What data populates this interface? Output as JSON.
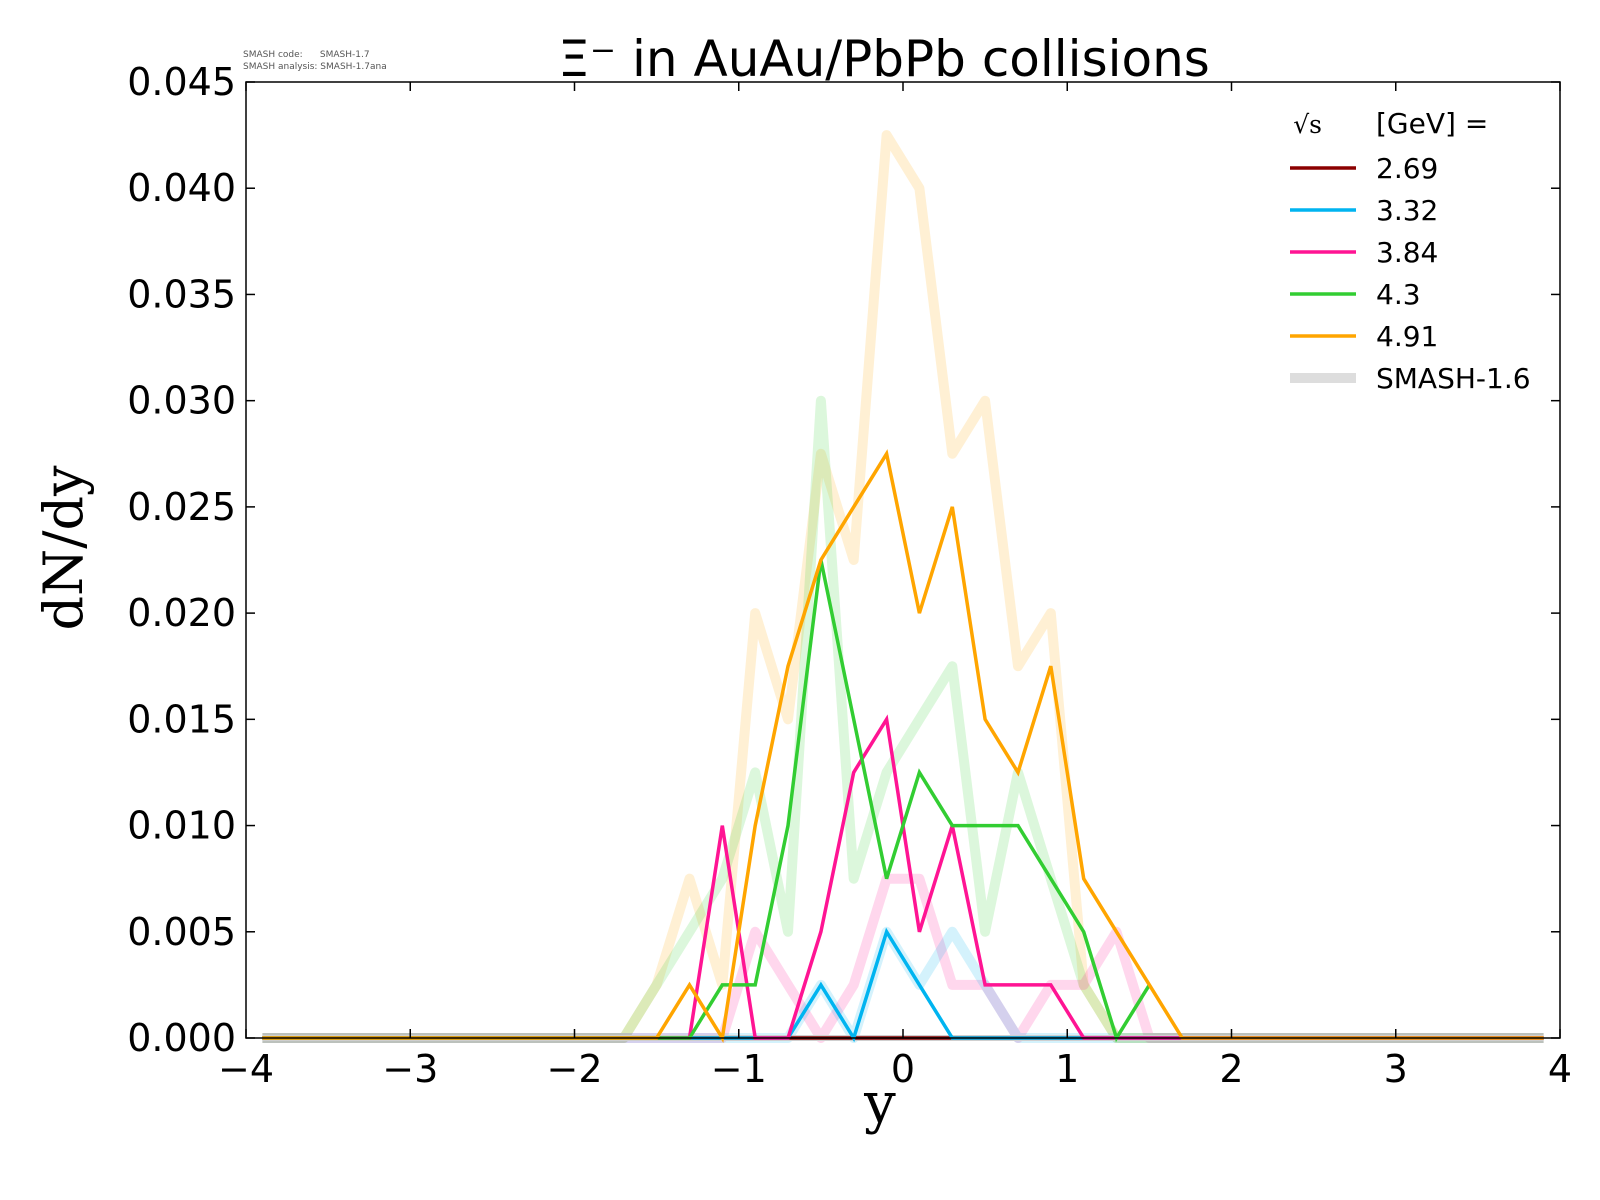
{
  "meta_text": [
    "SMASH code:      SMASH-1.7",
    "SMASH analysis: SMASH-1.7ana"
  ],
  "chart_data": {
    "type": "line",
    "title": "Ξ⁻ in AuAu/PbPb collisions",
    "xlabel": "y",
    "ylabel": "dN/dy",
    "xlim": [
      -4,
      4
    ],
    "ylim": [
      0,
      0.045
    ],
    "xticks": [
      "−4",
      "−3",
      "−2",
      "−1",
      "0",
      "1",
      "2",
      "3",
      "4"
    ],
    "yticks": [
      "0.000",
      "0.005",
      "0.010",
      "0.015",
      "0.020",
      "0.025",
      "0.030",
      "0.035",
      "0.040",
      "0.045"
    ],
    "grid": false,
    "legend": {
      "placement": "top-right",
      "title_sqrt": "√s",
      "title_rest": "[GeV] ="
    },
    "series": [
      {
        "name": "2.69",
        "color": "#8b0000",
        "x": [
          -3.9,
          3.9
        ],
        "values": [
          0,
          0
        ]
      },
      {
        "name": "3.32",
        "color": "#00b4f0",
        "x": [
          -3.9,
          -0.9,
          -0.7,
          -0.5,
          -0.3,
          -0.1,
          0.1,
          0.3,
          3.9
        ],
        "values": [
          0,
          0,
          0,
          0.0025,
          0,
          0.005,
          0.0025,
          0,
          0
        ]
      },
      {
        "name": "3.84",
        "color": "#ff1493",
        "x": [
          -3.9,
          -1.3,
          -1.1,
          -0.9,
          -0.7,
          -0.5,
          -0.3,
          -0.1,
          0.1,
          0.3,
          0.5,
          0.7,
          0.9,
          1.1,
          3.9
        ],
        "values": [
          0,
          0,
          0.01,
          0,
          0,
          0.005,
          0.0125,
          0.015,
          0.005,
          0.01,
          0.0025,
          0.0025,
          0.0025,
          0,
          0
        ]
      },
      {
        "name": "4.3",
        "color": "#32cd32",
        "x": [
          -3.9,
          -1.3,
          -1.1,
          -0.9,
          -0.7,
          -0.5,
          -0.3,
          -0.1,
          0.1,
          0.3,
          0.5,
          0.7,
          0.9,
          1.1,
          1.3,
          1.5
        ],
        "values": [
          0,
          0,
          0.0025,
          0.0025,
          0.01,
          0.0225,
          0.015,
          0.0075,
          0.0125,
          0.01,
          0.01,
          0.01,
          0.0075,
          0.005,
          0,
          0.0025
        ]
      },
      {
        "name": "4.91",
        "color": "#ffa500",
        "x": [
          -3.9,
          -1.5,
          -1.3,
          -1.1,
          -0.9,
          -0.7,
          -0.5,
          -0.3,
          -0.1,
          0.1,
          0.3,
          0.5,
          0.7,
          0.9,
          1.1,
          1.3,
          1.5,
          1.7,
          3.9
        ],
        "values": [
          0,
          0,
          0.0025,
          0,
          0.01,
          0.0175,
          0.0225,
          0.025,
          0.0275,
          0.02,
          0.025,
          0.015,
          0.0125,
          0.0175,
          0.0075,
          0.005,
          0.0025,
          0,
          0
        ]
      }
    ],
    "reference": {
      "name": "SMASH-1.6",
      "legend_color": "#dddddd",
      "series": [
        {
          "color": "#ffa500",
          "x": [
            -3.9,
            -1.7,
            -1.5,
            -1.3,
            -1.1,
            -0.9,
            -0.7,
            -0.5,
            -0.3,
            -0.1,
            0.1,
            0.3,
            0.5,
            0.7,
            0.9,
            1.1,
            1.3,
            3.9
          ],
          "values": [
            0,
            0,
            0.0025,
            0.0075,
            0.0025,
            0.02,
            0.015,
            0.0275,
            0.0225,
            0.0425,
            0.04,
            0.0275,
            0.03,
            0.0175,
            0.02,
            0.0025,
            0,
            0
          ]
        },
        {
          "color": "#32cd32",
          "x": [
            -3.9,
            -1.7,
            -1.5,
            -1.3,
            -1.1,
            -0.9,
            -0.7,
            -0.5,
            -0.3,
            -0.1,
            0.1,
            0.3,
            0.5,
            0.7,
            0.9,
            1.1,
            1.3,
            3.9
          ],
          "values": [
            0,
            0,
            0.0025,
            0.005,
            0.0075,
            0.0125,
            0.005,
            0.03,
            0.0075,
            0.0125,
            0.015,
            0.0175,
            0.005,
            0.0125,
            0.0075,
            0.0025,
            0,
            0
          ]
        },
        {
          "color": "#ff1493",
          "x": [
            -3.9,
            -1.1,
            -0.9,
            -0.7,
            -0.5,
            -0.3,
            -0.1,
            0.1,
            0.3,
            0.5,
            0.7,
            0.9,
            1.1,
            1.3,
            1.5,
            3.9
          ],
          "values": [
            0,
            0,
            0.005,
            0.0025,
            0,
            0.0025,
            0.0075,
            0.0075,
            0.0025,
            0.0025,
            0,
            0.0025,
            0.0025,
            0.005,
            0,
            0
          ]
        },
        {
          "color": "#00b4f0",
          "x": [
            -3.9,
            -0.7,
            -0.5,
            -0.3,
            -0.1,
            0.1,
            0.3,
            0.5,
            0.7,
            0.9,
            3.9
          ],
          "values": [
            0,
            0,
            0.0025,
            0,
            0.005,
            0.0025,
            0.005,
            0.0025,
            0,
            0,
            0
          ]
        }
      ]
    }
  }
}
